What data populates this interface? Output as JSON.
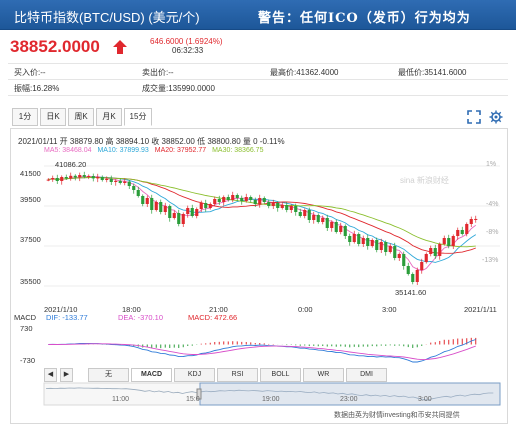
{
  "header": {
    "title": "比特币指数(BTC/USD) (美元/个)",
    "warning": "警告：任何ICO（发币）行为均为"
  },
  "quote": {
    "price": "38852.0000",
    "change": "646.6000 (1.6924%)",
    "time": "06:32:33",
    "color_up": "#e0282e"
  },
  "stats": [
    {
      "label": "买入价:",
      "value": "--"
    },
    {
      "label": "卖出价:",
      "value": "--"
    },
    {
      "label": "最高价:",
      "value": "41362.4000"
    },
    {
      "label": "最低价:",
      "value": "35141.6000"
    },
    {
      "label": "振幅:",
      "value": "16.28%"
    },
    {
      "label": "成交量:",
      "value": "135990.0000"
    }
  ],
  "period_tabs": [
    "1分",
    "日K",
    "周K",
    "月K",
    "15分"
  ],
  "active_period": "15分",
  "toolbar_icons": [
    "fullscreen-icon",
    "settings-icon"
  ],
  "info": "2021/01/11 开 38879.80 高 38894.10 收 38852.00 低 38800.80 量 0 -0.11%",
  "ma": [
    {
      "text": "MA5: 38468.04",
      "color": "#e86bc1"
    },
    {
      "text": "MA10: 37899.93",
      "color": "#2ea8d8"
    },
    {
      "text": "MA20: 37952.77",
      "color": "#e0282e"
    },
    {
      "text": "MA30: 38366.75",
      "color": "#8bbf2e"
    }
  ],
  "watermark": "sina 新浪财经",
  "price_axis": [
    "41500",
    "39500",
    "37500",
    "35500"
  ],
  "pct_axis": [
    "1%",
    "-4%",
    "-8%",
    "-13%"
  ],
  "price_tags": {
    "high": "41086.20",
    "low": "35141.60"
  },
  "time_axis": [
    "2021/1/10",
    "18:00",
    "21:00",
    "0:00",
    "3:00",
    "2021/1/11"
  ],
  "macd": {
    "label": "MACD",
    "dif": "DIF: -133.77",
    "dea": "DEA: -370.10",
    "macd": "MACD: 472.66",
    "dif_color": "#2e7bd8",
    "dea_color": "#d84ec9",
    "macd_color": "#e0282e",
    "top": "730",
    "bottom": "-730"
  },
  "indicator_tabs": [
    "无",
    "MACD",
    "KDJ",
    "RSI",
    "BOLL",
    "WR",
    "DMI"
  ],
  "active_indicator": "MACD",
  "navigator_axis": [
    "11:00",
    "15:0",
    "19:00",
    "23:00",
    "3:00"
  ],
  "footer": "数据由英为财情investing和币安共同提供",
  "chart_data": {
    "type": "candlestick",
    "title": "",
    "y_range": [
      34900,
      41900
    ],
    "y_ticks": [
      41500,
      39500,
      37500,
      35500
    ],
    "high": 41086.2,
    "low": 35141.6,
    "last_close": 38852.0,
    "series": [
      {
        "name": "MA5",
        "color": "#e86bc1"
      },
      {
        "name": "MA10",
        "color": "#2ea8d8"
      },
      {
        "name": "MA20",
        "color": "#e0282e"
      },
      {
        "name": "MA30",
        "color": "#8bbf2e"
      }
    ],
    "closes": [
      40820,
      40900,
      40750,
      40950,
      40880,
      41010,
      40930,
      41050,
      40960,
      41000,
      40880,
      40950,
      40800,
      40860,
      40700,
      40760,
      40650,
      40720,
      40500,
      40300,
      40000,
      39600,
      39900,
      39300,
      39700,
      39200,
      39500,
      38900,
      39150,
      38600,
      39100,
      39400,
      39000,
      39350,
      39650,
      39400,
      39600,
      39850,
      39700,
      39950,
      39800,
      40050,
      39900,
      39750,
      39950,
      39800,
      39600,
      39900,
      39700,
      39500,
      39650,
      39400,
      39550,
      39300,
      39500,
      39200,
      39000,
      39300,
      38800,
      39050,
      38700,
      38900,
      38400,
      38700,
      38200,
      38500,
      38000,
      37700,
      38100,
      37600,
      37900,
      37500,
      37800,
      37300,
      37700,
      37200,
      37500,
      36900,
      37100,
      36500,
      36100,
      35700,
      36300,
      36700,
      37100,
      37400,
      37000,
      37600,
      37900,
      37500,
      38000,
      38300,
      38100,
      38600,
      38850,
      38852
    ],
    "macd_hist_range": [
      -730,
      730
    ]
  }
}
